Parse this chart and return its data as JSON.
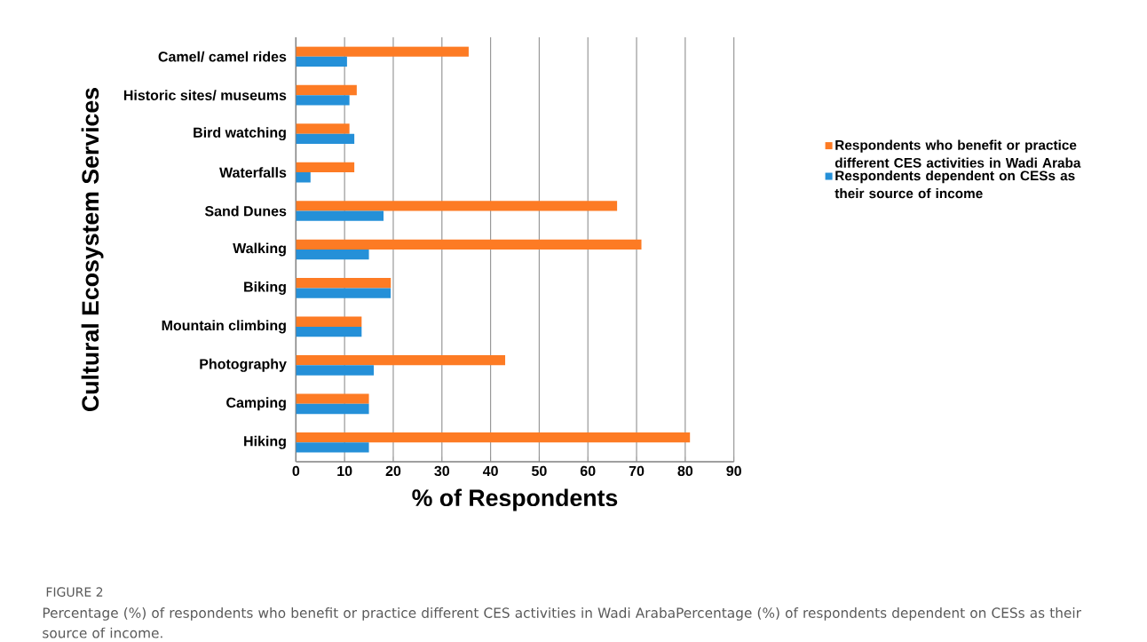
{
  "chart_data": {
    "type": "bar",
    "orientation": "horizontal",
    "ylabel": "Cultural Ecosystem Services",
    "xlabel": "% of Respondents",
    "categories": [
      "Camel/ camel rides",
      "Historic sites/ museums",
      "Bird watching",
      "Waterfalls",
      "Sand Dunes",
      "Walking",
      "Biking",
      "Mountain climbing",
      "Photography",
      "Camping",
      "Hiking"
    ],
    "series": [
      {
        "name": "Respondents who benefit or practice different CES activities in Wadi Araba",
        "color": "#fd7b24",
        "values": [
          35.5,
          12.5,
          11,
          12,
          66,
          71,
          19.5,
          13.5,
          43,
          15,
          81
        ]
      },
      {
        "name": "Respondents dependent on CESs as their source of income",
        "color": "#2590d8",
        "values": [
          10.5,
          11,
          12,
          3,
          18,
          15,
          19.5,
          13.5,
          16,
          15,
          15
        ]
      }
    ],
    "xlim": [
      0,
      90
    ],
    "xticks": [
      0,
      10,
      20,
      30,
      40,
      50,
      60,
      70,
      80,
      90
    ],
    "grid": "x",
    "legend": "right",
    "annotations": [
      "FIGURE 2",
      "Percentage (%) of respondents who benefit or practice different CES activities in Wadi ArabaPercentage (%) of respondents dependent on CESs as their source of income."
    ]
  }
}
